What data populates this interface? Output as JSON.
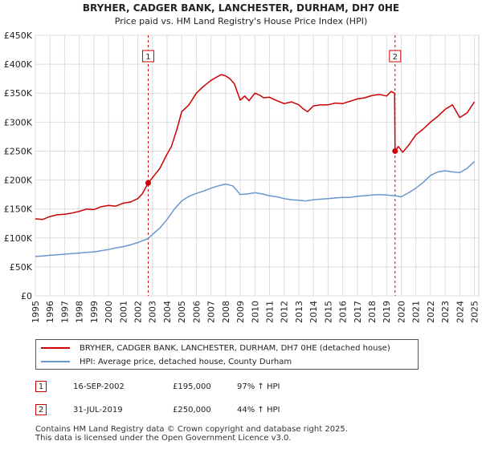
{
  "chart_data": {
    "type": "line",
    "title": "BRYHER, CADGER BANK, LANCHESTER, DURHAM, DH7 0HE",
    "subtitle": "Price paid vs. HM Land Registry's House Price Index (HPI)",
    "xlim": [
      1995,
      2025.3
    ],
    "ylim": [
      0,
      450000
    ],
    "ytick_values": [
      0,
      50000,
      100000,
      150000,
      200000,
      250000,
      300000,
      350000,
      400000,
      450000
    ],
    "ytick_labels": [
      "£0",
      "£50K",
      "£100K",
      "£150K",
      "£200K",
      "£250K",
      "£300K",
      "£350K",
      "£400K",
      "£450K"
    ],
    "xtick_values": [
      1995,
      1996,
      1997,
      1998,
      1999,
      2000,
      2001,
      2002,
      2003,
      2004,
      2005,
      2006,
      2007,
      2008,
      2009,
      2010,
      2011,
      2012,
      2013,
      2014,
      2015,
      2016,
      2017,
      2018,
      2019,
      2020,
      2021,
      2022,
      2023,
      2024,
      2025
    ],
    "grid": true,
    "series": [
      {
        "name": "BRYHER, CADGER BANK, LANCHESTER, DURHAM, DH7 0HE (detached house)",
        "color": "#cc0000",
        "x": [
          1995.0,
          1995.5,
          1996.0,
          1996.5,
          1997.0,
          1997.5,
          1998.0,
          1998.5,
          1999.0,
          1999.5,
          2000.0,
          2000.5,
          2001.0,
          2001.5,
          2002.0,
          2002.3,
          2002.71,
          2003.0,
          2003.5,
          2004.0,
          2004.3,
          2004.7,
          2005.0,
          2005.5,
          2006.0,
          2006.5,
          2007.0,
          2007.4,
          2007.7,
          2008.0,
          2008.3,
          2008.6,
          2009.0,
          2009.3,
          2009.6,
          2010.0,
          2010.3,
          2010.6,
          2011.0,
          2011.5,
          2012.0,
          2012.5,
          2013.0,
          2013.3,
          2013.6,
          2014.0,
          2014.5,
          2015.0,
          2015.5,
          2016.0,
          2016.5,
          2017.0,
          2017.5,
          2018.0,
          2018.5,
          2019.0,
          2019.3,
          2019.55,
          2019.58,
          2019.8,
          2020.1,
          2020.5,
          2021.0,
          2021.5,
          2022.0,
          2022.5,
          2023.0,
          2023.5,
          2024.0,
          2024.5,
          2025.0
        ],
        "y": [
          133000,
          132000,
          137000,
          140000,
          141000,
          143000,
          146000,
          150000,
          149000,
          154000,
          156000,
          155000,
          160000,
          162000,
          168000,
          176000,
          195000,
          204000,
          220000,
          245000,
          258000,
          290000,
          318000,
          330000,
          350000,
          362000,
          372000,
          378000,
          382000,
          380000,
          375000,
          366000,
          338000,
          345000,
          337000,
          350000,
          347000,
          342000,
          343000,
          337000,
          332000,
          335000,
          330000,
          323000,
          318000,
          328000,
          330000,
          330000,
          333000,
          332000,
          336000,
          340000,
          342000,
          346000,
          348000,
          345000,
          353000,
          350000,
          250000,
          258000,
          248000,
          260000,
          278000,
          288000,
          300000,
          310000,
          322000,
          330000,
          308000,
          316000,
          335000
        ]
      },
      {
        "name": "HPI: Average price, detached house, County Durham",
        "color": "#6a97cf",
        "x": [
          1995.0,
          1995.5,
          1996.0,
          1996.5,
          1997.0,
          1997.5,
          1998.0,
          1998.5,
          1999.0,
          1999.5,
          2000.0,
          2000.5,
          2001.0,
          2001.5,
          2002.0,
          2002.71,
          2003.0,
          2003.5,
          2004.0,
          2004.5,
          2005.0,
          2005.5,
          2006.0,
          2006.5,
          2007.0,
          2007.5,
          2008.0,
          2008.5,
          2009.0,
          2009.5,
          2010.0,
          2010.5,
          2011.0,
          2011.5,
          2012.0,
          2012.5,
          2013.0,
          2013.5,
          2014.0,
          2014.5,
          2015.0,
          2015.5,
          2016.0,
          2016.5,
          2017.0,
          2017.5,
          2018.0,
          2018.5,
          2019.0,
          2019.58,
          2020.0,
          2020.5,
          2021.0,
          2021.5,
          2022.0,
          2022.5,
          2023.0,
          2023.5,
          2024.0,
          2024.5,
          2025.0
        ],
        "y": [
          68000,
          69000,
          70000,
          71000,
          72000,
          73000,
          74000,
          75000,
          76000,
          78000,
          80000,
          83000,
          85000,
          88000,
          92000,
          99000,
          106000,
          117000,
          132000,
          150000,
          164000,
          172000,
          177000,
          181000,
          186000,
          190000,
          193000,
          190000,
          175000,
          176000,
          178000,
          176000,
          173000,
          171000,
          168000,
          166000,
          165000,
          164000,
          166000,
          167000,
          168000,
          169000,
          170000,
          170000,
          172000,
          173000,
          174000,
          175000,
          174000,
          173000,
          171000,
          178000,
          186000,
          196000,
          208000,
          214000,
          216000,
          214000,
          213000,
          220000,
          232000
        ]
      }
    ],
    "annotations": [
      {
        "label": "1",
        "x": 2002.71,
        "y": 195000
      },
      {
        "label": "2",
        "x": 2019.58,
        "y": 250000
      }
    ]
  },
  "legend": {
    "property_label": "BRYHER, CADGER BANK, LANCHESTER, DURHAM, DH7 0HE (detached house)",
    "hpi_label": "HPI: Average price, detached house, County Durham",
    "property_color": "#cc0000",
    "hpi_color": "#6a97cf"
  },
  "sales": [
    {
      "badge": "1",
      "date": "16-SEP-2002",
      "price": "£195,000",
      "hpi_change": "97% ↑ HPI"
    },
    {
      "badge": "2",
      "date": "31-JUL-2019",
      "price": "£250,000",
      "hpi_change": "44% ↑ HPI"
    }
  ],
  "footer": {
    "line1": "Contains HM Land Registry data © Crown copyright and database right 2025.",
    "line2": "This data is licensed under the Open Government Licence v3.0."
  }
}
